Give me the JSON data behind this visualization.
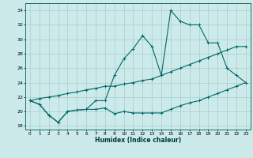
{
  "xlabel": "Humidex (Indice chaleur)",
  "ylabel": "",
  "bg_color": "#cceaea",
  "grid_color": "#aacccc",
  "line_color": "#006868",
  "xlim": [
    -0.5,
    23.5
  ],
  "ylim": [
    17.5,
    35.0
  ],
  "xticks": [
    0,
    1,
    2,
    3,
    4,
    5,
    6,
    7,
    8,
    9,
    10,
    11,
    12,
    13,
    14,
    15,
    16,
    17,
    18,
    19,
    20,
    21,
    22,
    23
  ],
  "yticks": [
    18,
    20,
    22,
    24,
    26,
    28,
    30,
    32,
    34
  ],
  "line1_x": [
    0,
    1,
    2,
    3,
    4,
    5,
    6,
    7,
    8,
    9,
    10,
    11,
    12,
    13,
    14,
    15,
    16,
    17,
    18,
    19,
    20,
    21,
    22,
    23
  ],
  "line1_y": [
    21.5,
    21.0,
    19.5,
    18.5,
    20.0,
    20.2,
    20.3,
    20.3,
    20.5,
    19.7,
    20.0,
    19.8,
    19.8,
    19.8,
    19.8,
    20.3,
    20.8,
    21.2,
    21.5,
    22.0,
    22.5,
    23.0,
    23.5,
    24.0
  ],
  "line2_x": [
    0,
    1,
    2,
    3,
    4,
    5,
    6,
    7,
    8,
    9,
    10,
    11,
    12,
    13,
    14,
    15,
    16,
    17,
    18,
    19,
    20,
    21,
    22,
    23
  ],
  "line2_y": [
    21.5,
    21.0,
    19.5,
    18.5,
    20.0,
    20.2,
    20.3,
    21.5,
    21.5,
    25.0,
    27.3,
    28.7,
    30.5,
    29.0,
    25.0,
    34.0,
    32.5,
    32.0,
    32.0,
    29.5,
    29.5,
    26.0,
    25.0,
    24.0
  ],
  "line3_x": [
    0,
    1,
    2,
    3,
    4,
    5,
    6,
    7,
    8,
    9,
    10,
    11,
    12,
    13,
    14,
    15,
    16,
    17,
    18,
    19,
    20,
    21,
    22,
    23
  ],
  "line3_y": [
    21.5,
    21.8,
    22.0,
    22.2,
    22.5,
    22.7,
    23.0,
    23.2,
    23.5,
    23.5,
    23.8,
    24.0,
    24.3,
    24.5,
    25.0,
    25.5,
    26.0,
    26.5,
    27.0,
    27.5,
    28.0,
    28.5,
    29.0,
    29.0
  ]
}
